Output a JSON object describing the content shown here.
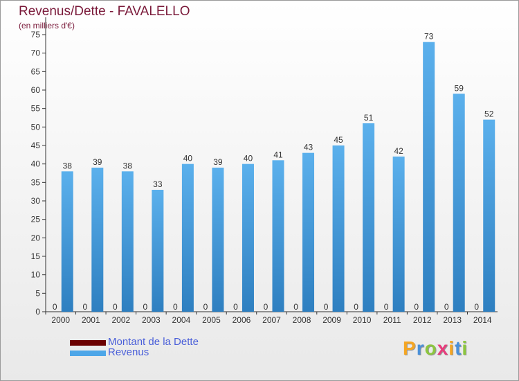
{
  "title": "Revenus/Dette - FAVALELLO",
  "subtitle": "(en milliers d'€)",
  "logo": {
    "letters": [
      "P",
      "r",
      "o",
      "x",
      "i",
      "t",
      "i"
    ],
    "colors": [
      "#f5a623",
      "#4a90d9",
      "#8cc63f",
      "#e83c7c",
      "#f5a623",
      "#4a90d9",
      "#8cc63f"
    ]
  },
  "colors": {
    "debt": "#6b0000",
    "revenue": "#4da6e8",
    "title": "#7a1a3a",
    "legend_text": "#4a5fd9"
  },
  "chart_data": {
    "type": "bar",
    "categories": [
      "2000",
      "2001",
      "2002",
      "2003",
      "2004",
      "2005",
      "2006",
      "2007",
      "2008",
      "2009",
      "2010",
      "2011",
      "2012",
      "2013",
      "2014"
    ],
    "series": [
      {
        "name": "Montant de la Dette",
        "values": [
          0,
          0,
          0,
          0,
          0,
          0,
          0,
          0,
          0,
          0,
          0,
          0,
          0,
          0,
          0
        ]
      },
      {
        "name": "Revenus",
        "values": [
          38,
          39,
          38,
          33,
          40,
          39,
          40,
          41,
          43,
          45,
          51,
          42,
          73,
          59,
          52
        ]
      }
    ],
    "yticks": [
      "0",
      "5",
      "10",
      "15",
      "20",
      "25",
      "30",
      "35",
      "40",
      "45",
      "50",
      "55",
      "60",
      "65",
      "70",
      "75"
    ],
    "ylim": [
      0,
      75
    ],
    "grid": false,
    "legend_position": "bottom-left"
  }
}
